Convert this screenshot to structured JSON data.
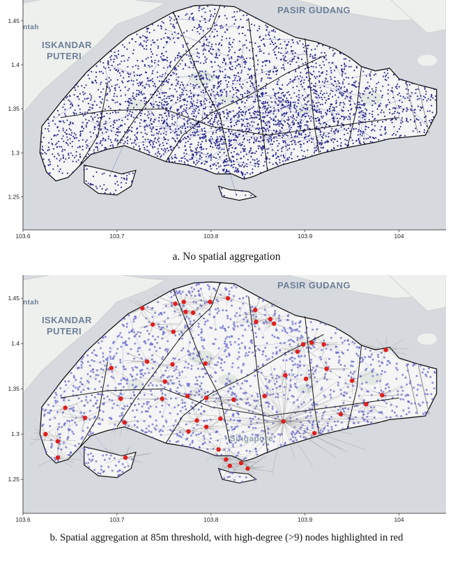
{
  "panels": [
    {
      "caption": "a. No spatial aggregation",
      "places": [
        "PASIR GUDANG",
        "ISKANDAR",
        "PUTERI",
        "ntah"
      ],
      "x_ticks": [
        "103.6",
        "103.7",
        "103.8",
        "103.9",
        "104"
      ],
      "y_ticks": [
        "1.45",
        "1.4",
        "1.35",
        "1.3",
        "1.25"
      ],
      "node_color": "#1f1f8c",
      "aggregated": false
    },
    {
      "caption": "b. Spatial aggregation at 85m threshold, with high-degree (>9) nodes highlighted in red",
      "places": [
        "PASIR GUDANG",
        "ISKANDAR",
        "PUTERI",
        "ntah",
        "Singapore"
      ],
      "x_ticks": [
        "103.6",
        "103.7",
        "103.8",
        "103.9",
        "104"
      ],
      "y_ticks": [
        "1.45",
        "1.4",
        "1.35",
        "1.3",
        "1.25"
      ],
      "node_color": "#6b6bd0",
      "highlight_color": "#e01e1e",
      "aggregated": true,
      "hubs": [
        {
          "lon": 103.727,
          "lat": 1.439
        },
        {
          "lon": 103.762,
          "lat": 1.444
        },
        {
          "lon": 103.771,
          "lat": 1.446
        },
        {
          "lon": 103.799,
          "lat": 1.446
        },
        {
          "lon": 103.818,
          "lat": 1.45
        },
        {
          "lon": 103.847,
          "lat": 1.437
        },
        {
          "lon": 103.863,
          "lat": 1.427
        },
        {
          "lon": 103.773,
          "lat": 1.435
        },
        {
          "lon": 103.781,
          "lat": 1.434
        },
        {
          "lon": 103.738,
          "lat": 1.421
        },
        {
          "lon": 103.76,
          "lat": 1.413
        },
        {
          "lon": 103.848,
          "lat": 1.424
        },
        {
          "lon": 103.867,
          "lat": 1.422
        },
        {
          "lon": 103.898,
          "lat": 1.399
        },
        {
          "lon": 103.907,
          "lat": 1.401
        },
        {
          "lon": 103.92,
          "lat": 1.399
        },
        {
          "lon": 103.892,
          "lat": 1.391
        },
        {
          "lon": 103.732,
          "lat": 1.38
        },
        {
          "lon": 103.759,
          "lat": 1.377
        },
        {
          "lon": 103.794,
          "lat": 1.378
        },
        {
          "lon": 103.986,
          "lat": 1.393
        },
        {
          "lon": 103.694,
          "lat": 1.373
        },
        {
          "lon": 103.879,
          "lat": 1.365
        },
        {
          "lon": 103.923,
          "lat": 1.372
        },
        {
          "lon": 103.901,
          "lat": 1.361
        },
        {
          "lon": 103.95,
          "lat": 1.359
        },
        {
          "lon": 103.751,
          "lat": 1.358
        },
        {
          "lon": 103.704,
          "lat": 1.339
        },
        {
          "lon": 103.748,
          "lat": 1.339
        },
        {
          "lon": 103.775,
          "lat": 1.342
        },
        {
          "lon": 103.795,
          "lat": 1.34
        },
        {
          "lon": 103.824,
          "lat": 1.338
        },
        {
          "lon": 103.857,
          "lat": 1.342
        },
        {
          "lon": 103.982,
          "lat": 1.343
        },
        {
          "lon": 103.965,
          "lat": 1.333
        },
        {
          "lon": 103.645,
          "lat": 1.329
        },
        {
          "lon": 103.666,
          "lat": 1.318
        },
        {
          "lon": 103.708,
          "lat": 1.313
        },
        {
          "lon": 103.785,
          "lat": 1.315
        },
        {
          "lon": 103.81,
          "lat": 1.317
        },
        {
          "lon": 103.877,
          "lat": 1.314
        },
        {
          "lon": 103.938,
          "lat": 1.322
        },
        {
          "lon": 103.776,
          "lat": 1.303
        },
        {
          "lon": 103.795,
          "lat": 1.308
        },
        {
          "lon": 103.624,
          "lat": 1.3
        },
        {
          "lon": 103.637,
          "lat": 1.292
        },
        {
          "lon": 103.91,
          "lat": 1.301
        },
        {
          "lon": 103.637,
          "lat": 1.274
        },
        {
          "lon": 103.709,
          "lat": 1.274
        },
        {
          "lon": 103.808,
          "lat": 1.283
        },
        {
          "lon": 103.816,
          "lat": 1.272
        },
        {
          "lon": 103.82,
          "lat": 1.265
        },
        {
          "lon": 103.832,
          "lat": 1.268
        },
        {
          "lon": 103.839,
          "lat": 1.262
        }
      ]
    }
  ]
}
